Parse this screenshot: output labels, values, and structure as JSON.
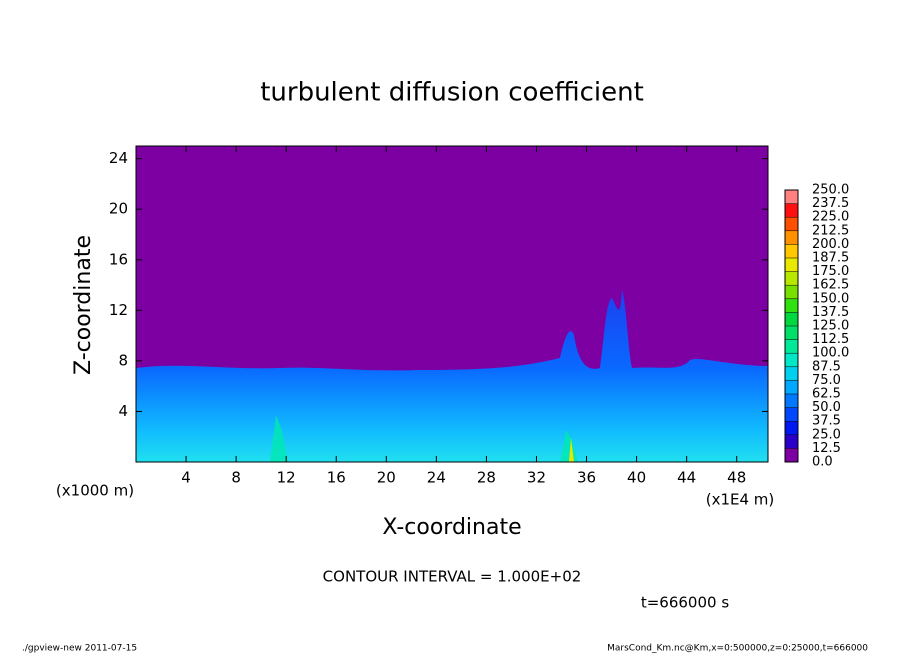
{
  "chart_data": {
    "type": "contour",
    "title": "turbulent diffusion coefficient",
    "x_label": "X-coordinate",
    "y_label": "Z-coordinate",
    "x_unit": "(x1E4 m)",
    "y_unit": "(x1000 m)",
    "xlim": [
      0,
      50.5
    ],
    "ylim": [
      0,
      25
    ],
    "xticks": [
      4,
      8,
      12,
      16,
      20,
      24,
      28,
      32,
      36,
      40,
      44,
      48
    ],
    "yticks": [
      4,
      8,
      12,
      16,
      20,
      24
    ],
    "contour_interval": "CONTOUR INTERVAL = 1.000E+02",
    "time_label": "t=666000 s",
    "colorbar": {
      "levels": [
        {
          "value": 0,
          "label": "0.0"
        },
        {
          "value": 12.5,
          "label": "12.5"
        },
        {
          "value": 25,
          "label": "25.0"
        },
        {
          "value": 37.5,
          "label": "37.5"
        },
        {
          "value": 50,
          "label": "50.0"
        },
        {
          "value": 62.5,
          "label": "62.5"
        },
        {
          "value": 75,
          "label": "75.0"
        },
        {
          "value": 87.5,
          "label": "87.5"
        },
        {
          "value": 100,
          "label": "100.0"
        },
        {
          "value": 112.5,
          "label": "112.5"
        },
        {
          "value": 125,
          "label": "125.0"
        },
        {
          "value": 137.5,
          "label": "137.5"
        },
        {
          "value": 150,
          "label": "150.0"
        },
        {
          "value": 162.5,
          "label": "162.5"
        },
        {
          "value": 175,
          "label": "175.0"
        },
        {
          "value": 187.5,
          "label": "187.5"
        },
        {
          "value": 200,
          "label": "200.0"
        },
        {
          "value": 212.5,
          "label": "212.5"
        },
        {
          "value": 225,
          "label": "225.0"
        },
        {
          "value": 237.5,
          "label": "237.5"
        },
        {
          "value": 250,
          "label": "250.0"
        }
      ],
      "colors": [
        "#7d00a3",
        "#2a00c8",
        "#0018f0",
        "#0048ff",
        "#0078ff",
        "#00a8ff",
        "#00d0f0",
        "#00e8c8",
        "#00e898",
        "#00e068",
        "#00d840",
        "#30e010",
        "#78e000",
        "#b8e800",
        "#e8e800",
        "#ffc800",
        "#ff9000",
        "#ff5000",
        "#ff1010",
        "#ff8080"
      ]
    },
    "footer_left": "./gpview-new   2011-07-15",
    "footer_right": "MarsCond_Km.nc@Km,x=0:500000,z=0:25000,t=666000"
  }
}
